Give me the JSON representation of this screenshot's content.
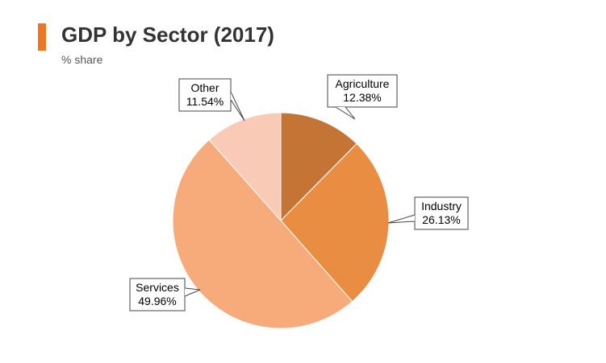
{
  "chart_data": {
    "type": "pie",
    "title": "GDP by Sector (2017)",
    "subtitle": "% share",
    "slices": [
      {
        "name": "Agriculture",
        "value": 12.38,
        "label": "12.38%",
        "color": "#c47535"
      },
      {
        "name": "Industry",
        "value": 26.13,
        "label": "26.13%",
        "color": "#e98d43"
      },
      {
        "name": "Services",
        "value": 49.96,
        "label": "49.96%",
        "color": "#f7ab7a"
      },
      {
        "name": "Other",
        "value": 11.54,
        "label": "11.54%",
        "color": "#f9cab5"
      }
    ],
    "accent_color": "#ee7623",
    "legend": "none"
  }
}
